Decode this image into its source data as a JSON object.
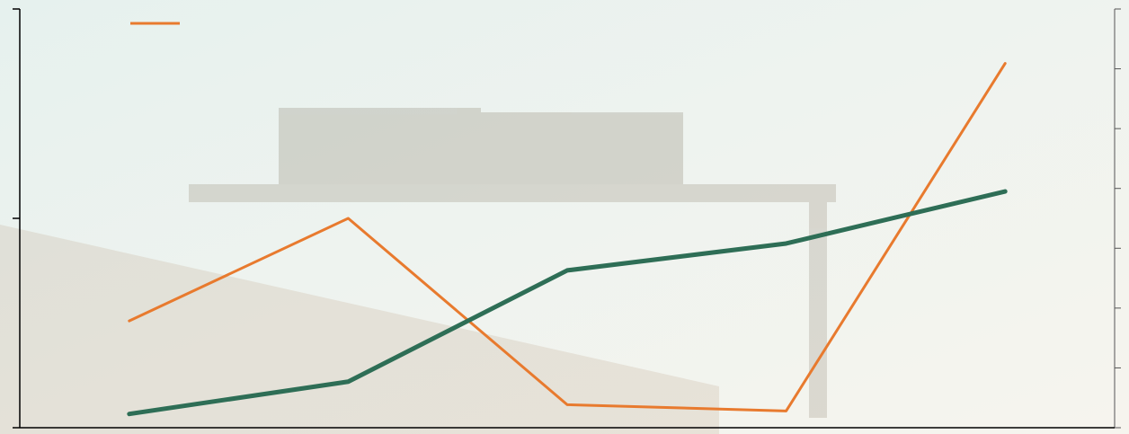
{
  "chart_data": {
    "type": "line",
    "categories": [
      null,
      null,
      null,
      null,
      null
    ],
    "series": [
      {
        "color": "#e87a2e",
        "values": [
          0.51,
          1.0,
          0.11,
          0.08,
          1.74
        ]
      },
      {
        "color": "#2e6e56",
        "values": [
          0.23,
          0.77,
          2.63,
          3.08,
          3.95
        ],
        "axis": "y2"
      }
    ],
    "ylim": [
      0,
      2
    ],
    "yticks": [
      0,
      1,
      2
    ],
    "y2lim": [
      0,
      7
    ],
    "y2ticks": [
      0,
      1,
      2,
      3,
      4,
      5,
      6,
      7
    ],
    "legend": "upper left"
  }
}
